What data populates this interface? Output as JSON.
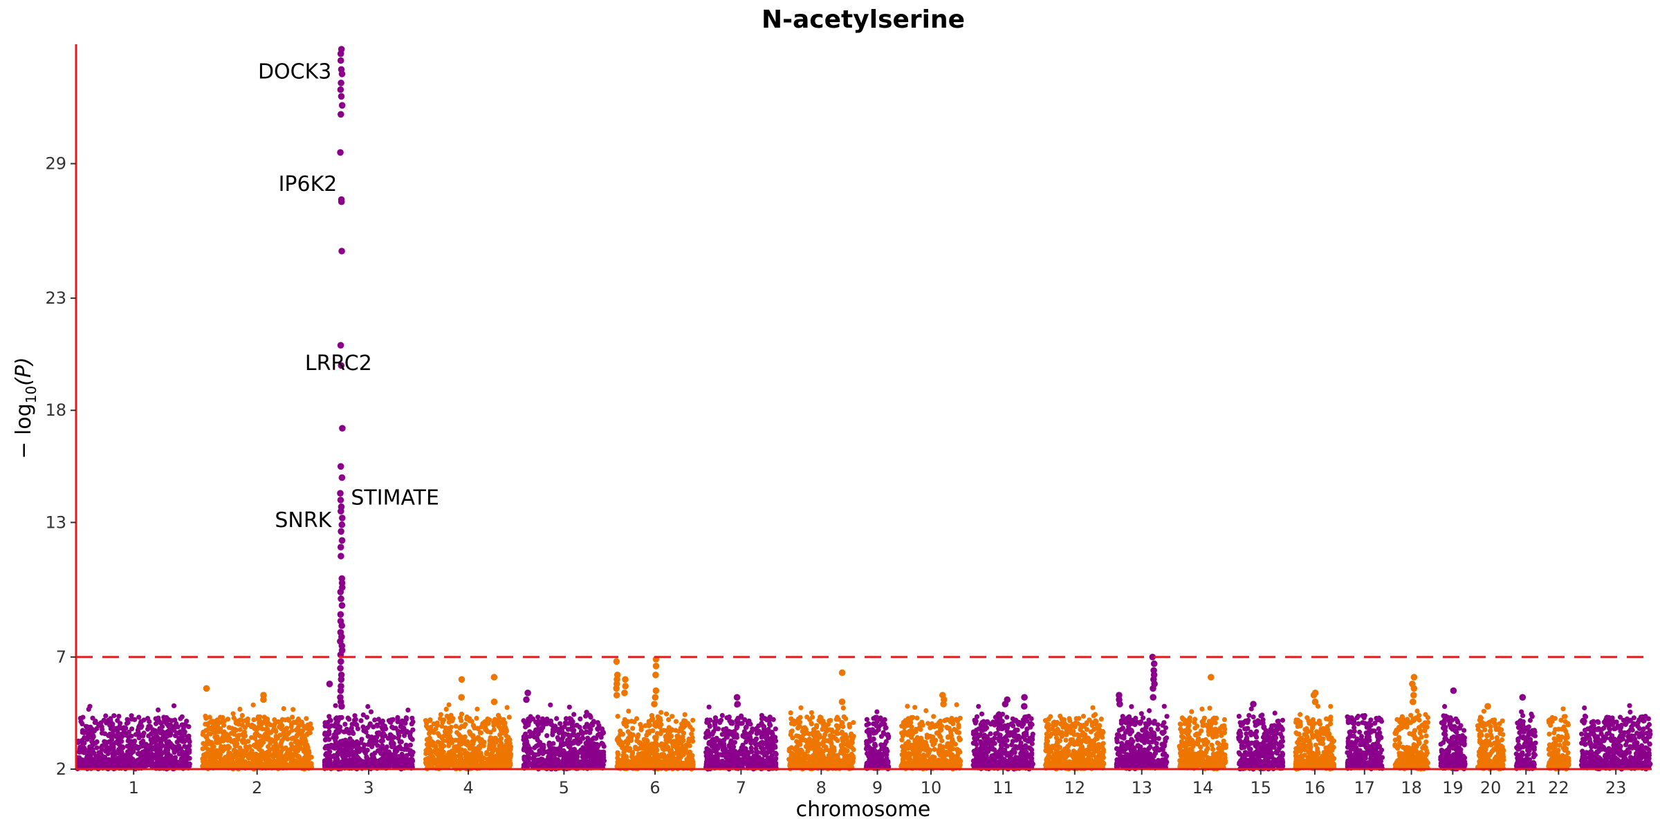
{
  "chart_data": {
    "type": "scatter",
    "title": "N-acetylserine",
    "xlabel": "chromosome",
    "ylabel_main": "− log",
    "ylabel_sub": "10",
    "ylabel_tail": "(P)",
    "y_ticks": [
      2,
      7,
      13,
      18,
      23,
      29
    ],
    "ylim": [
      2,
      34.2
    ],
    "significance_line": 7,
    "colors": {
      "odd": "#8B008B",
      "even": "#EE7600",
      "axis": "#E41A1C",
      "threshold": "#E41A1C"
    },
    "chromosomes": [
      {
        "label": "1",
        "size": 249
      },
      {
        "label": "2",
        "size": 243
      },
      {
        "label": "3",
        "size": 198
      },
      {
        "label": "4",
        "size": 191
      },
      {
        "label": "5",
        "size": 181
      },
      {
        "label": "6",
        "size": 171
      },
      {
        "label": "7",
        "size": 159
      },
      {
        "label": "8",
        "size": 146
      },
      {
        "label": "9",
        "size": 55
      },
      {
        "label": "10",
        "size": 135
      },
      {
        "label": "11",
        "size": 135
      },
      {
        "label": "12",
        "size": 133
      },
      {
        "label": "13",
        "size": 115
      },
      {
        "label": "14",
        "size": 107
      },
      {
        "label": "15",
        "size": 102
      },
      {
        "label": "16",
        "size": 90
      },
      {
        "label": "17",
        "size": 83
      },
      {
        "label": "18",
        "size": 78
      },
      {
        "label": "19",
        "size": 59
      },
      {
        "label": "20",
        "size": 63
      },
      {
        "label": "21",
        "size": 48
      },
      {
        "label": "22",
        "size": 51
      },
      {
        "label": "23",
        "size": 155
      }
    ],
    "background_max": 4.2,
    "peaks": [
      {
        "chr": "2",
        "pos": 0.05,
        "values": [
          5.6
        ]
      },
      {
        "chr": "2",
        "pos": 0.55,
        "values": [
          5.3,
          5.1
        ]
      },
      {
        "chr": "3",
        "pos": 0.08,
        "values": [
          5.8
        ]
      },
      {
        "chr": "3",
        "pos": 0.2,
        "values": [
          34.1,
          33.9,
          33.6,
          33.2,
          33.0,
          32.6,
          32.3,
          32.0,
          31.6,
          31.2,
          29.5,
          27.4,
          27.3,
          25.1,
          20.9,
          20.0,
          17.2,
          15.5,
          15.0,
          14.3,
          14.0,
          13.7,
          13.5,
          13.2,
          12.9,
          12.6,
          12.2,
          11.9,
          11.5,
          10.5,
          10.3,
          10.1,
          9.9,
          9.6,
          9.3,
          8.9,
          8.6,
          8.4,
          8.1,
          7.9,
          7.7,
          7.5,
          7.3,
          7.1,
          6.8,
          6.5,
          6.2,
          6.0,
          5.7,
          5.5,
          5.2,
          5.0,
          4.8
        ]
      },
      {
        "chr": "4",
        "pos": 0.42,
        "values": [
          6.0,
          5.2
        ]
      },
      {
        "chr": "4",
        "pos": 0.8,
        "values": [
          6.1,
          5.0
        ]
      },
      {
        "chr": "5",
        "pos": 0.06,
        "values": [
          5.4,
          5.1
        ]
      },
      {
        "chr": "6",
        "pos": 0.02,
        "values": [
          6.8,
          6.2,
          6.0,
          5.8,
          5.6,
          5.3
        ]
      },
      {
        "chr": "6",
        "pos": 0.12,
        "values": [
          6.0,
          5.7,
          5.4
        ]
      },
      {
        "chr": "6",
        "pos": 0.5,
        "values": [
          6.9,
          6.6,
          6.2,
          5.5,
          5.2,
          4.9
        ]
      },
      {
        "chr": "7",
        "pos": 0.45,
        "values": [
          5.2,
          4.9
        ]
      },
      {
        "chr": "8",
        "pos": 0.8,
        "values": [
          6.3,
          5.0
        ]
      },
      {
        "chr": "10",
        "pos": 0.7,
        "values": [
          5.3,
          5.1,
          4.9
        ]
      },
      {
        "chr": "11",
        "pos": 0.55,
        "values": [
          5.1,
          4.9
        ]
      },
      {
        "chr": "11",
        "pos": 0.85,
        "values": [
          5.2,
          4.8
        ]
      },
      {
        "chr": "13",
        "pos": 0.07,
        "values": [
          5.3,
          5.1,
          4.9
        ]
      },
      {
        "chr": "13",
        "pos": 0.72,
        "values": [
          7.0,
          6.7,
          6.4,
          6.2,
          6.0,
          5.8,
          5.6,
          5.2
        ]
      },
      {
        "chr": "14",
        "pos": 0.65,
        "values": [
          6.1
        ]
      },
      {
        "chr": "15",
        "pos": 0.35,
        "values": [
          4.9
        ]
      },
      {
        "chr": "16",
        "pos": 0.5,
        "values": [
          5.4,
          5.3,
          5.0
        ]
      },
      {
        "chr": "18",
        "pos": 0.55,
        "values": [
          6.1,
          5.8,
          5.6,
          5.3,
          5.0
        ]
      },
      {
        "chr": "19",
        "pos": 0.55,
        "values": [
          5.5
        ]
      },
      {
        "chr": "20",
        "pos": 0.4,
        "values": [
          4.8
        ]
      },
      {
        "chr": "21",
        "pos": 0.35,
        "values": [
          5.2
        ]
      }
    ],
    "annotations": [
      {
        "text": "DOCK3",
        "chr": "3",
        "pos": 0.2,
        "y": 33.1,
        "anchor": "end",
        "dx": -14
      },
      {
        "text": "IP6K2",
        "chr": "3",
        "pos": 0.2,
        "y": 28.1,
        "anchor": "end",
        "dx": -6
      },
      {
        "text": "LRRC2",
        "chr": "3",
        "pos": 0.2,
        "y": 20.1,
        "anchor": "middle",
        "dx": -4
      },
      {
        "text": "STIMATE",
        "chr": "3",
        "pos": 0.2,
        "y": 14.1,
        "anchor": "start",
        "dx": 14
      },
      {
        "text": "SNRK",
        "chr": "3",
        "pos": 0.2,
        "y": 13.1,
        "anchor": "end",
        "dx": -14
      }
    ]
  }
}
